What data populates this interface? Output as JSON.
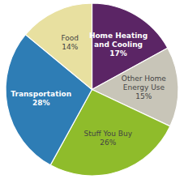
{
  "chart_data": {
    "type": "pie",
    "categories": [
      "Home Heating\nand Cooling",
      "Other Home\nEnergy Use",
      "Stuff You Buy",
      "Transportation",
      "Food"
    ],
    "values": [
      17,
      15,
      26,
      28,
      14
    ],
    "value_labels": [
      "17%",
      "15%",
      "26%",
      "28%",
      "14%"
    ],
    "data_labels": true,
    "colors": [
      "#5b2565",
      "#c8c5b8",
      "#8fbc2b",
      "#2e7db5",
      "#e8e0a0"
    ]
  }
}
